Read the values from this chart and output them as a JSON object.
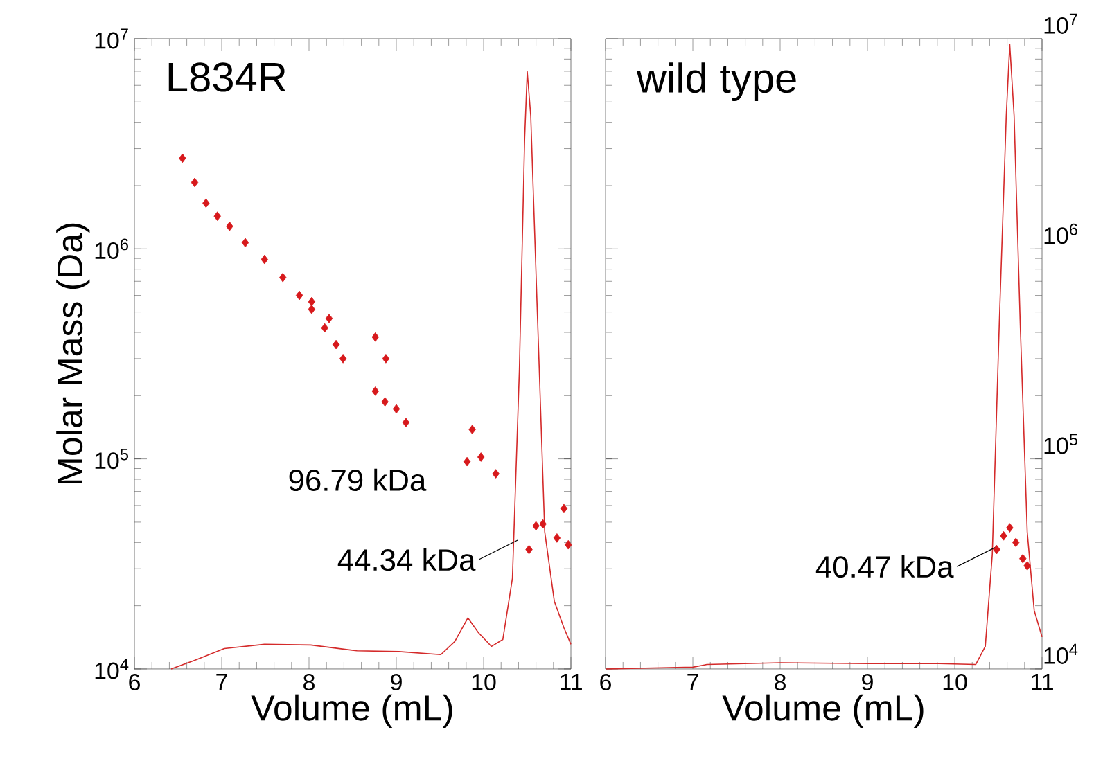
{
  "chart_data": [
    {
      "type": "scatter",
      "title": "L834R",
      "xlabel": "Volume (mL)",
      "ylabel": "Molar Mass (Da)",
      "log": "y",
      "xlim": [
        6,
        11
      ],
      "ylim": [
        10000,
        10000000
      ],
      "xticks": [
        6,
        7,
        8,
        9,
        10,
        11
      ],
      "yticks": [
        {
          "value": 10000,
          "label": "10$^{4}$"
        },
        {
          "value": 100000,
          "label": "10$^{5}$"
        },
        {
          "value": 1000000,
          "label": "10$^{6}$"
        },
        {
          "value": 10000000,
          "label": "10$^{7}$"
        }
      ],
      "annotations": [
        "96.79  kDa",
        {
          "text": "44.34  kDa",
          "x": 10.39,
          "y": 41000
        }
      ],
      "series": [
        {
          "type": "line",
          "color": "#d42a2a",
          "x": [
            6.42,
            6.69,
            7.03,
            7.49,
            8.02,
            8.55,
            9.03,
            9.51,
            9.67,
            9.82,
            9.94,
            10.09,
            10.22,
            10.33,
            10.41,
            10.47,
            10.5,
            10.54,
            10.62,
            10.7,
            10.81,
            10.92,
            11.0
          ],
          "values": [
            10000,
            11000,
            12500,
            13100,
            13000,
            12200,
            12100,
            11700,
            13500,
            17500,
            14900,
            12800,
            13800,
            27000,
            267000,
            3350000,
            6970000,
            4300000,
            440000,
            45000,
            21000,
            15700,
            13100
          ]
        },
        {
          "color": "#d7191c",
          "marker": "diamond",
          "x": [
            6.55,
            6.69,
            6.82,
            6.95,
            7.09,
            7.27,
            7.49,
            7.7,
            7.89,
            8.03,
            8.03,
            8.18,
            8.23,
            8.31,
            8.39,
            8.76,
            8.88,
            8.76,
            8.87,
            9.0,
            9.11,
            9.87,
            9.81,
            9.97,
            10.14,
            10.52,
            10.6,
            10.68,
            10.84,
            10.92,
            10.97
          ],
          "values": [
            2700000,
            2070000,
            1650000,
            1430000,
            1280000,
            1070000,
            890000,
            730000,
            600000,
            560000,
            515000,
            420000,
            466000,
            350000,
            300000,
            380000,
            300000,
            210000,
            187000,
            173000,
            149000,
            138000,
            97000,
            102000,
            85000,
            37000,
            48000,
            49000,
            42000,
            58000,
            39000
          ]
        }
      ]
    },
    {
      "type": "scatter",
      "title": "wild type",
      "xlabel": "Volume (mL)",
      "log": "y",
      "xlim": [
        6,
        11
      ],
      "ylim": [
        10000,
        10000000
      ],
      "xticks": [
        6,
        7,
        8,
        9,
        10,
        11
      ],
      "yticks": [
        {
          "value": 10000,
          "label": "10$^{4}$"
        },
        {
          "value": 100000,
          "label": "10$^{5}$"
        },
        {
          "value": 1000000,
          "label": "10$^{6}$"
        },
        {
          "value": 10000000,
          "label": "10$^{7}$"
        }
      ],
      "annotations": [
        {
          "text": "40.47 kDa",
          "x": 10.47,
          "y": 38000
        }
      ],
      "series": [
        {
          "type": "line",
          "color": "#d42a2a",
          "x": [
            6.0,
            7.0,
            7.16,
            8.01,
            9.02,
            9.82,
            10.24,
            10.35,
            10.43,
            10.51,
            10.59,
            10.63,
            10.68,
            10.75,
            10.83,
            10.91,
            11.0
          ],
          "values": [
            10000,
            10200,
            10500,
            10700,
            10600,
            10600,
            10500,
            12800,
            35000,
            440000,
            4300000,
            9400000,
            4300000,
            440000,
            45000,
            19000,
            14200
          ]
        },
        {
          "color": "#d7191c",
          "marker": "diamond",
          "x": [
            10.48,
            10.56,
            10.63,
            10.7,
            10.78,
            10.83
          ],
          "values": [
            37000,
            43000,
            47000,
            40000,
            33500,
            31000
          ]
        }
      ]
    }
  ]
}
